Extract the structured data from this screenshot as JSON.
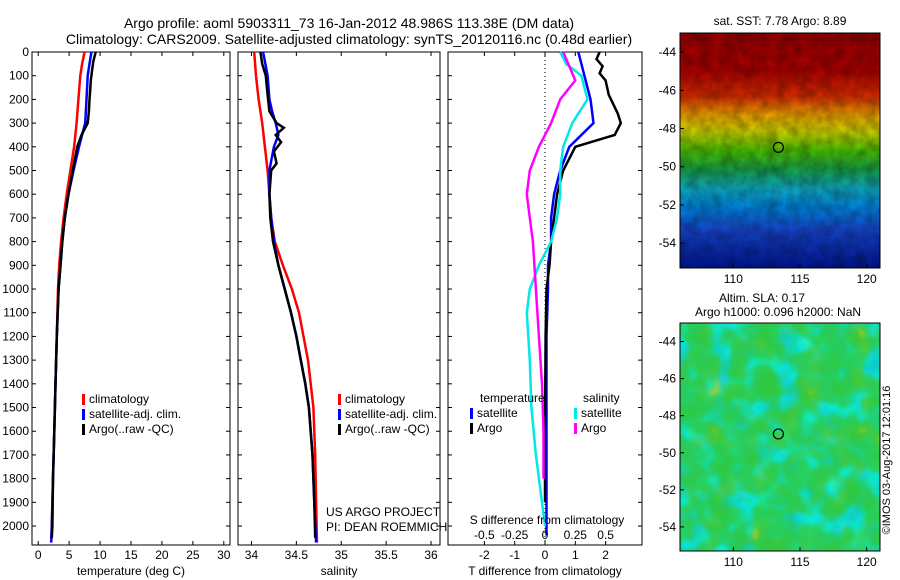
{
  "header": {
    "title_line1": "Argo profile: aoml 5903311_73 16-Jan-2012 48.986S 113.38E (DM data)",
    "title_line2": "Climatology: CARS2009. Satellite-adjusted climatology: synTS_20120116.nc (0.48d earlier)"
  },
  "colors": {
    "climatology": "#ff0000",
    "satellite_adj": "#0000ff",
    "argo": "#000000",
    "sal_satellite": "#00e8e8",
    "sal_argo": "#ff00ff"
  },
  "chart_data": [
    {
      "type": "line",
      "panel": "temperature",
      "xlabel": "temperature (deg C)",
      "xlim": [
        -1,
        31
      ],
      "ylim": [
        2080,
        0
      ],
      "xticks": [
        0,
        5,
        10,
        15,
        20,
        25,
        30
      ],
      "yticks": [
        0,
        100,
        200,
        300,
        400,
        500,
        600,
        700,
        800,
        900,
        1000,
        1100,
        1200,
        1300,
        1400,
        1500,
        1600,
        1700,
        1800,
        1900,
        2000
      ],
      "legend": [
        "climatology",
        "satellite-adj. clim.",
        "Argo(..raw -QC)"
      ],
      "series": [
        {
          "name": "climatology",
          "color": "#ff0000",
          "points": [
            [
              7.5,
              0
            ],
            [
              7.1,
              50
            ],
            [
              6.8,
              100
            ],
            [
              6.5,
              200
            ],
            [
              6.2,
              300
            ],
            [
              5.8,
              400
            ],
            [
              5.2,
              500
            ],
            [
              4.6,
              600
            ],
            [
              4.1,
              700
            ],
            [
              3.7,
              800
            ],
            [
              3.4,
              900
            ],
            [
              3.2,
              1000
            ],
            [
              3.0,
              1200
            ],
            [
              2.8,
              1400
            ],
            [
              2.6,
              1600
            ],
            [
              2.4,
              1800
            ],
            [
              2.2,
              2000
            ],
            [
              2.1,
              2070
            ]
          ]
        },
        {
          "name": "satellite-adj. clim.",
          "color": "#0000ff",
          "points": [
            [
              8.6,
              0
            ],
            [
              8.3,
              50
            ],
            [
              8.0,
              100
            ],
            [
              7.8,
              200
            ],
            [
              7.6,
              300
            ],
            [
              6.6,
              400
            ],
            [
              5.7,
              500
            ],
            [
              4.9,
              600
            ],
            [
              4.3,
              700
            ],
            [
              3.9,
              800
            ],
            [
              3.6,
              900
            ],
            [
              3.3,
              1000
            ],
            [
              3.0,
              1200
            ],
            [
              2.8,
              1400
            ],
            [
              2.6,
              1600
            ],
            [
              2.4,
              1800
            ],
            [
              2.2,
              2000
            ],
            [
              2.1,
              2070
            ]
          ]
        },
        {
          "name": "Argo(..raw -QC)",
          "color": "#000000",
          "points": [
            [
              9.3,
              0
            ],
            [
              8.9,
              40
            ],
            [
              8.7,
              80
            ],
            [
              8.5,
              120
            ],
            [
              8.4,
              160
            ],
            [
              8.3,
              200
            ],
            [
              8.2,
              250
            ],
            [
              8.0,
              300
            ],
            [
              7.0,
              350
            ],
            [
              6.3,
              400
            ],
            [
              5.6,
              500
            ],
            [
              4.9,
              600
            ],
            [
              4.3,
              700
            ],
            [
              3.9,
              800
            ],
            [
              3.6,
              900
            ],
            [
              3.3,
              1000
            ],
            [
              3.0,
              1200
            ],
            [
              2.8,
              1400
            ],
            [
              2.6,
              1600
            ],
            [
              2.4,
              1800
            ],
            [
              2.3,
              2000
            ],
            [
              2.2,
              2050
            ]
          ]
        }
      ]
    },
    {
      "type": "line",
      "panel": "salinity",
      "xlabel": "salinity",
      "xlim": [
        33.85,
        36.1
      ],
      "ylim": [
        2080,
        0
      ],
      "xticks": [
        34,
        34.5,
        35,
        35.5,
        36
      ],
      "legend": [
        "climatology",
        "satellite-adj. clim.",
        "Argo(..raw -QC)"
      ],
      "annotation": [
        "US ARGO PROJECT",
        "PI: DEAN ROEMMICH"
      ],
      "series": [
        {
          "name": "climatology",
          "color": "#ff0000",
          "points": [
            [
              34.03,
              0
            ],
            [
              34.05,
              100
            ],
            [
              34.08,
              200
            ],
            [
              34.12,
              300
            ],
            [
              34.15,
              400
            ],
            [
              34.18,
              500
            ],
            [
              34.2,
              600
            ],
            [
              34.22,
              700
            ],
            [
              34.26,
              800
            ],
            [
              34.35,
              900
            ],
            [
              34.45,
              1000
            ],
            [
              34.53,
              1100
            ],
            [
              34.58,
              1200
            ],
            [
              34.63,
              1300
            ],
            [
              34.66,
              1400
            ],
            [
              34.69,
              1500
            ],
            [
              34.71,
              1700
            ],
            [
              34.72,
              1900
            ],
            [
              34.73,
              2070
            ]
          ]
        },
        {
          "name": "satellite-adj. clim.",
          "color": "#0000ff",
          "points": [
            [
              34.13,
              0
            ],
            [
              34.18,
              100
            ],
            [
              34.2,
              200
            ],
            [
              34.23,
              250
            ],
            [
              34.27,
              300
            ],
            [
              34.3,
              350
            ],
            [
              34.25,
              400
            ],
            [
              34.2,
              500
            ],
            [
              34.2,
              600
            ],
            [
              34.22,
              700
            ],
            [
              34.25,
              800
            ],
            [
              34.3,
              900
            ],
            [
              34.37,
              1000
            ],
            [
              34.44,
              1100
            ],
            [
              34.5,
              1200
            ],
            [
              34.55,
              1300
            ],
            [
              34.6,
              1400
            ],
            [
              34.64,
              1500
            ],
            [
              34.68,
              1700
            ],
            [
              34.7,
              1900
            ],
            [
              34.72,
              2070
            ]
          ]
        },
        {
          "name": "Argo(..raw -QC)",
          "color": "#000000",
          "points": [
            [
              34.1,
              0
            ],
            [
              34.12,
              50
            ],
            [
              34.16,
              100
            ],
            [
              34.18,
              180
            ],
            [
              34.2,
              250
            ],
            [
              34.28,
              300
            ],
            [
              34.36,
              320
            ],
            [
              34.27,
              350
            ],
            [
              34.33,
              380
            ],
            [
              34.25,
              420
            ],
            [
              34.28,
              470
            ],
            [
              34.22,
              500
            ],
            [
              34.2,
              600
            ],
            [
              34.21,
              700
            ],
            [
              34.24,
              800
            ],
            [
              34.3,
              900
            ],
            [
              34.37,
              1000
            ],
            [
              34.44,
              1100
            ],
            [
              34.5,
              1200
            ],
            [
              34.55,
              1300
            ],
            [
              34.6,
              1400
            ],
            [
              34.64,
              1500
            ],
            [
              34.68,
              1700
            ],
            [
              34.7,
              1900
            ],
            [
              34.71,
              2050
            ]
          ]
        }
      ]
    },
    {
      "type": "line",
      "panel": "difference",
      "xlabel": "T difference from climatology",
      "xlabel_top": "S difference from climatology",
      "xlim": [
        -3.2,
        3.2
      ],
      "ylim": [
        2080,
        0
      ],
      "xticks": [
        -2,
        -1,
        0,
        1,
        2
      ],
      "xticks_s": [
        "-0.5",
        "-0.25",
        "0",
        "0.25",
        "0.5"
      ],
      "legend_t_title": "temperature",
      "legend_s_title": "salinity",
      "legend_t": [
        "satellite",
        "Argo"
      ],
      "legend_s": [
        "satellite",
        "Argo"
      ],
      "series": [
        {
          "name": "temperature satellite",
          "color": "#0000ff",
          "points": [
            [
              1.1,
              0
            ],
            [
              1.2,
              50
            ],
            [
              1.3,
              100
            ],
            [
              1.5,
              200
            ],
            [
              1.6,
              300
            ],
            [
              0.8,
              400
            ],
            [
              0.5,
              500
            ],
            [
              0.3,
              600
            ],
            [
              0.2,
              700
            ],
            [
              0.2,
              800
            ],
            [
              0.1,
              900
            ],
            [
              0.1,
              1000
            ],
            [
              0.05,
              1200
            ],
            [
              0.05,
              1600
            ],
            [
              0.05,
              2000
            ],
            [
              0.05,
              2040
            ]
          ]
        },
        {
          "name": "temperature Argo",
          "color": "#000000",
          "points": [
            [
              1.8,
              0
            ],
            [
              1.7,
              30
            ],
            [
              1.9,
              60
            ],
            [
              1.8,
              90
            ],
            [
              2.0,
              120
            ],
            [
              2.1,
              180
            ],
            [
              2.4,
              260
            ],
            [
              2.5,
              300
            ],
            [
              2.3,
              350
            ],
            [
              1.0,
              400
            ],
            [
              0.6,
              500
            ],
            [
              0.4,
              600
            ],
            [
              0.3,
              700
            ],
            [
              0.2,
              800
            ],
            [
              0.15,
              900
            ],
            [
              0.05,
              1000
            ],
            [
              0.02,
              1200
            ],
            [
              0.0,
              1600
            ],
            [
              0.0,
              1900
            ]
          ]
        },
        {
          "name": "salinity satellite",
          "color": "#00e8e8",
          "points": [
            [
              0.5,
              0
            ],
            [
              0.7,
              50
            ],
            [
              1.2,
              100
            ],
            [
              1.4,
              200
            ],
            [
              0.9,
              300
            ],
            [
              0.6,
              400
            ],
            [
              0.5,
              500
            ],
            [
              0.5,
              600
            ],
            [
              0.4,
              700
            ],
            [
              0.2,
              800
            ],
            [
              -0.2,
              900
            ],
            [
              -0.5,
              1000
            ],
            [
              -0.6,
              1100
            ],
            [
              -0.5,
              1300
            ],
            [
              -0.45,
              1500
            ],
            [
              -0.3,
              1700
            ],
            [
              -0.1,
              1900
            ],
            [
              0.0,
              2000
            ]
          ]
        },
        {
          "name": "salinity Argo",
          "color": "#ff00ff",
          "points": [
            [
              0.6,
              0
            ],
            [
              0.8,
              60
            ],
            [
              1.0,
              120
            ],
            [
              0.5,
              200
            ],
            [
              0.2,
              300
            ],
            [
              -0.2,
              400
            ],
            [
              -0.5,
              500
            ],
            [
              -0.6,
              600
            ],
            [
              -0.5,
              700
            ],
            [
              -0.4,
              800
            ],
            [
              -0.35,
              900
            ],
            [
              -0.3,
              1000
            ],
            [
              -0.2,
              1200
            ],
            [
              -0.1,
              1400
            ],
            [
              -0.05,
              1600
            ],
            [
              -0.05,
              1800
            ]
          ]
        }
      ]
    },
    {
      "type": "heatmap",
      "panel": "sst_map",
      "title": "sat. SST: 7.78 Argo: 8.89",
      "xlim": [
        106,
        121
      ],
      "ylim": [
        -55.3,
        -43
      ],
      "xticks": [
        110,
        115,
        120
      ],
      "yticks": [
        -44,
        -46,
        -48,
        -50,
        -52,
        -54
      ],
      "marker": {
        "lon": 113.38,
        "lat": -48.986
      }
    },
    {
      "type": "heatmap",
      "panel": "sla_map",
      "title_line1": "Altim. SLA: 0.17",
      "title_line2": "Argo h1000: 0.096 h2000: NaN",
      "xlim": [
        106,
        121
      ],
      "ylim": [
        -55.3,
        -43
      ],
      "xticks": [
        110,
        115,
        120
      ],
      "yticks": [
        -44,
        -46,
        -48,
        -50,
        -52,
        -54
      ],
      "marker": {
        "lon": 113.38,
        "lat": -48.986
      }
    }
  ],
  "footer": {
    "credit": "©IMOS 03-Aug-2017 12:01:16"
  }
}
